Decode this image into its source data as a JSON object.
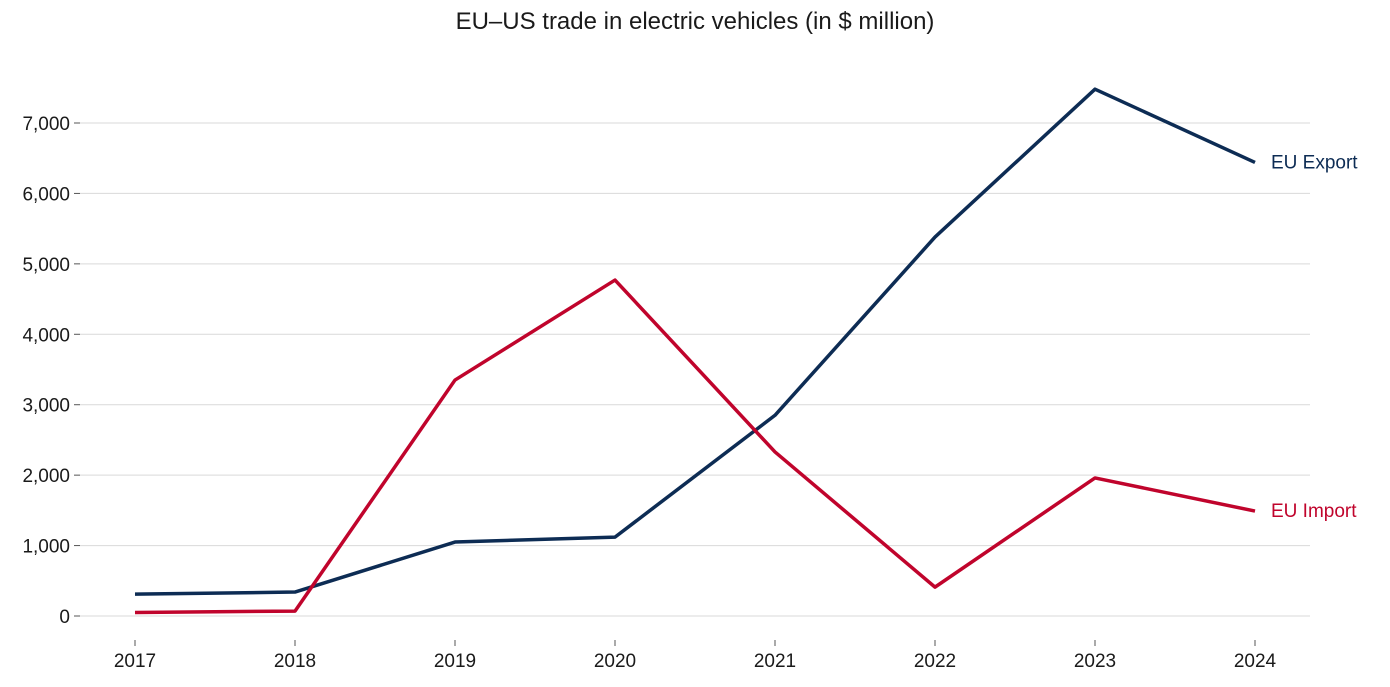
{
  "chart_data": {
    "type": "line",
    "title": "EU–US trade in electric vehicles (in $ million)",
    "xlabel": "",
    "ylabel": "",
    "x": [
      "2017",
      "2018",
      "2019",
      "2020",
      "2021",
      "2022",
      "2023",
      "2024"
    ],
    "yticks": [
      0,
      1000,
      2000,
      3000,
      4000,
      5000,
      6000,
      7000
    ],
    "ytick_labels": [
      "0",
      "1,000",
      "2,000",
      "3,000",
      "4,000",
      "5,000",
      "6,000",
      "7,000"
    ],
    "ylim": [
      0,
      7000
    ],
    "grid": true,
    "legend": "direct labels at right end of lines",
    "series": [
      {
        "name": "EU Export",
        "color": "#0d2c54",
        "values": [
          310,
          340,
          1050,
          1120,
          2850,
          5380,
          7480,
          6440
        ]
      },
      {
        "name": "EU Import",
        "color": "#c0042c",
        "values": [
          50,
          70,
          3350,
          4770,
          2330,
          410,
          1960,
          1490
        ]
      }
    ]
  }
}
